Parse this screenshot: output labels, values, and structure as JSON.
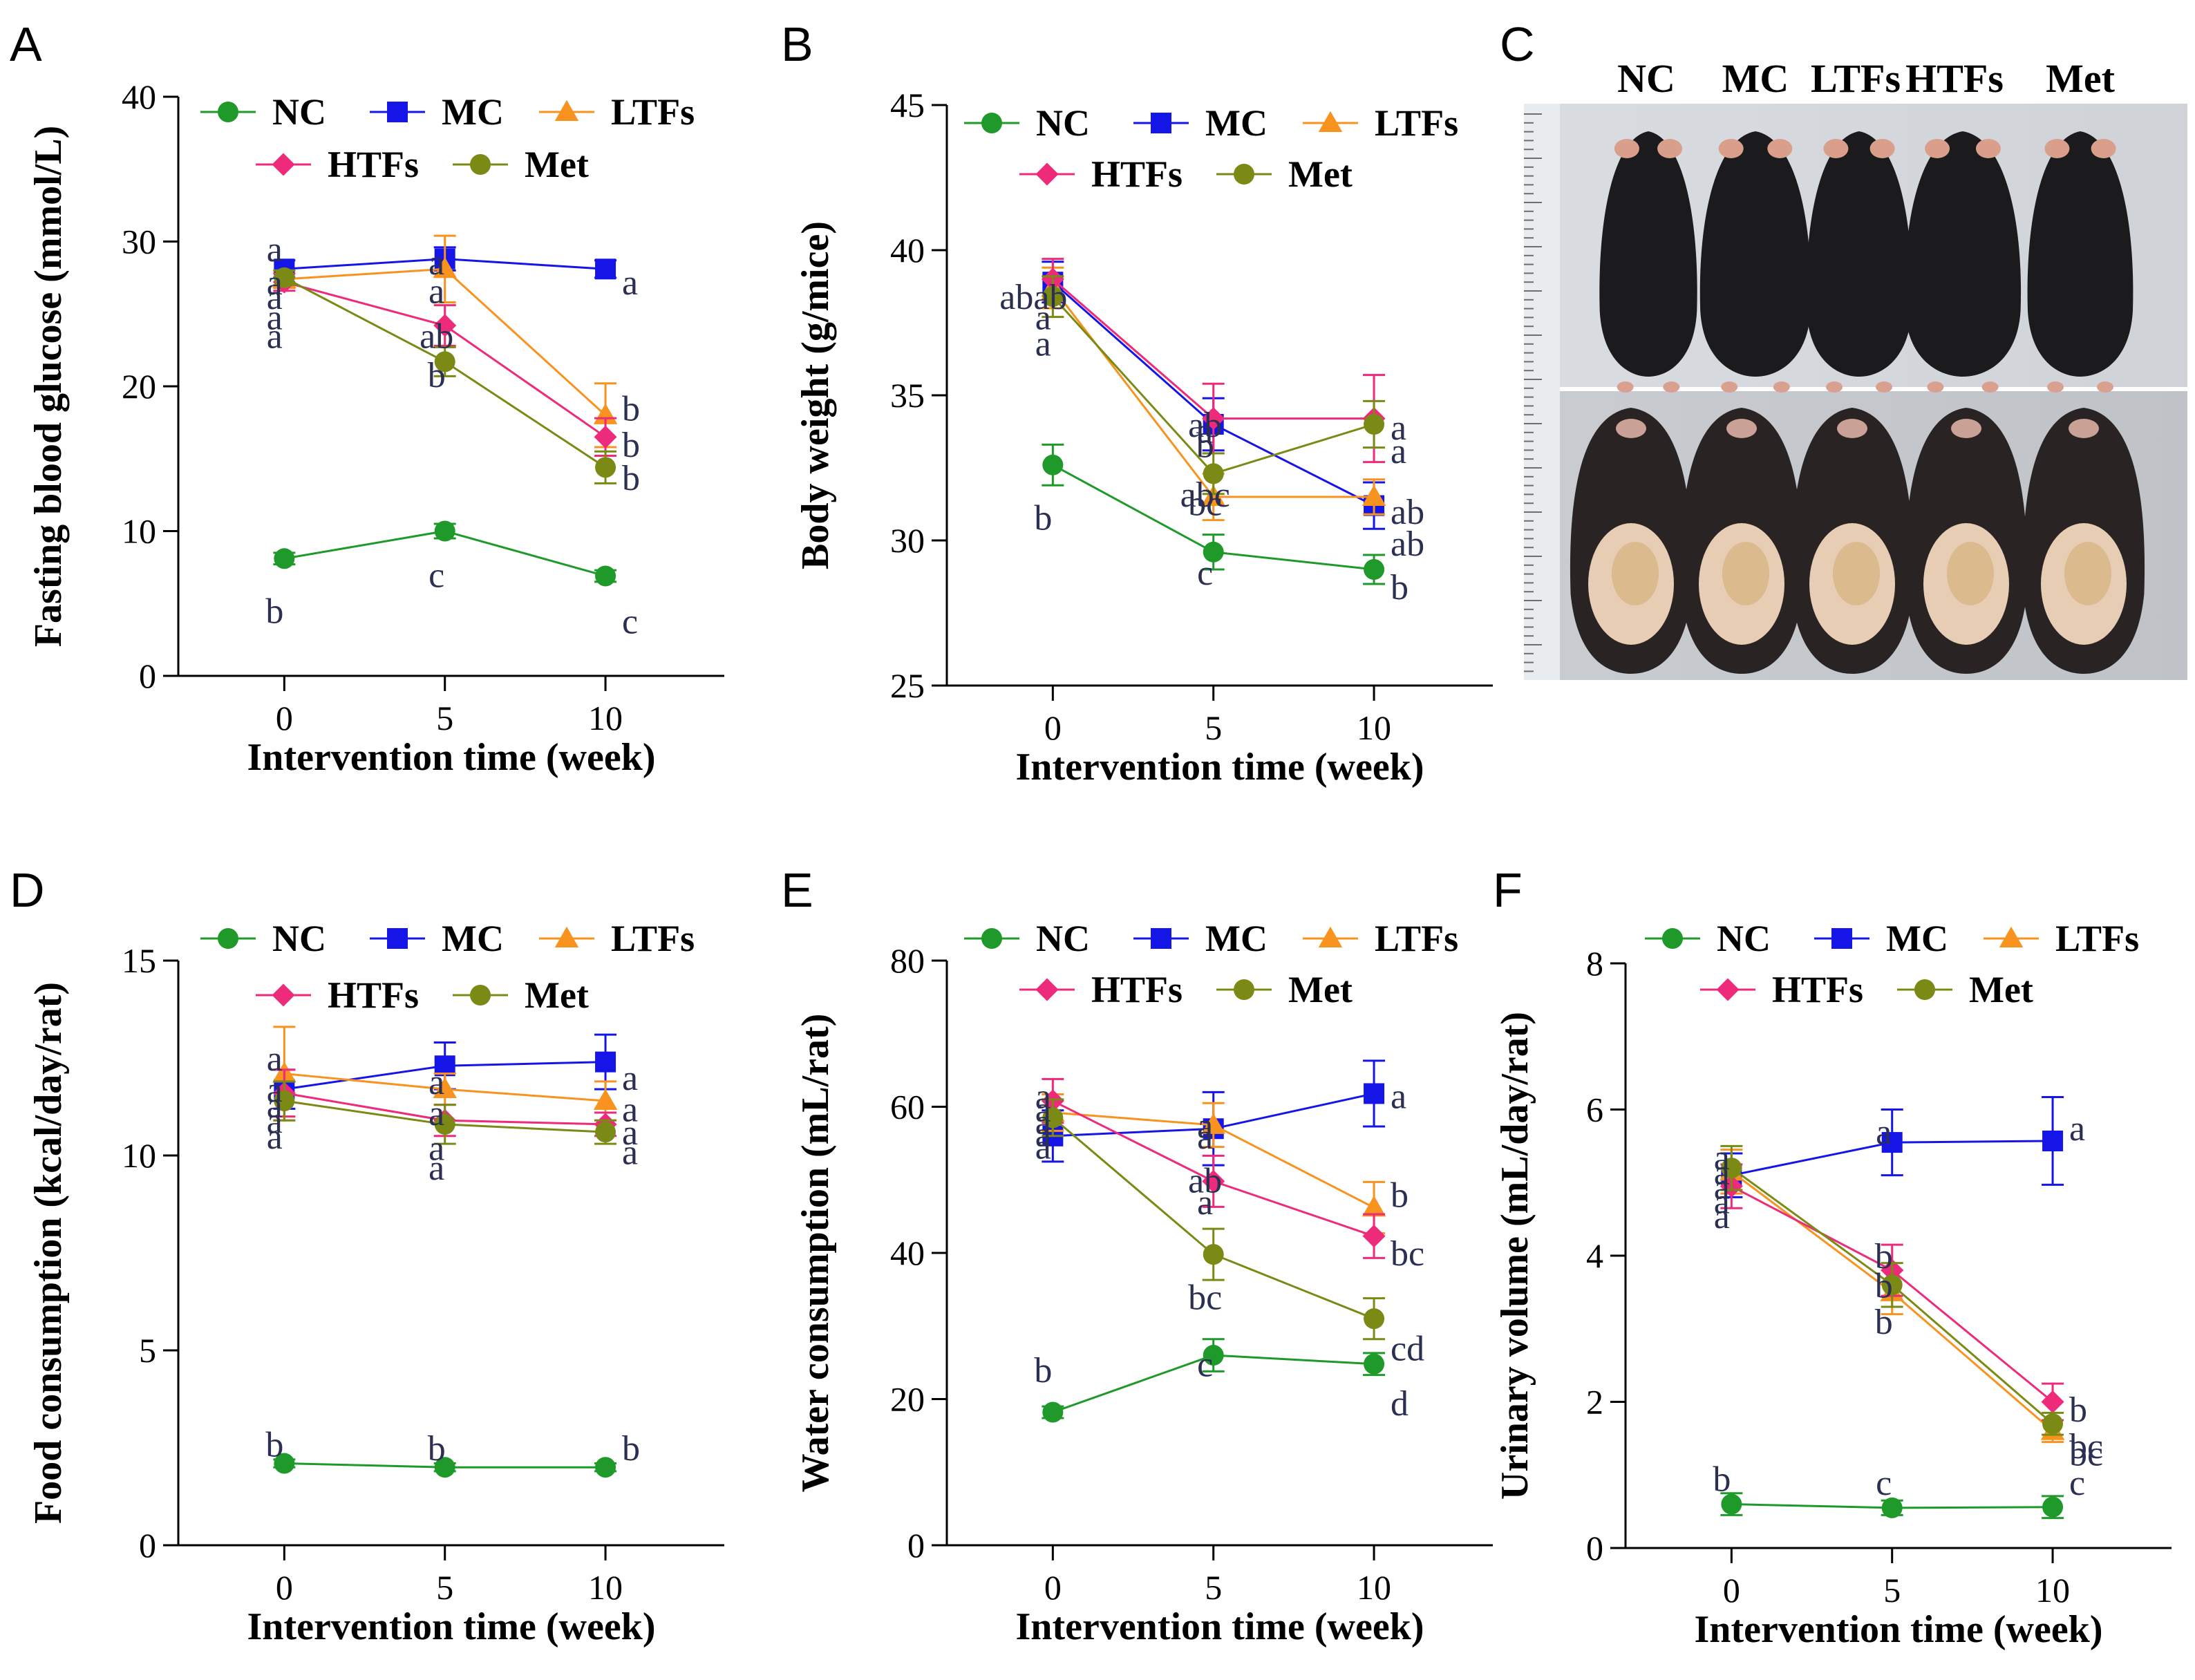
{
  "colors": {
    "NC": "#1f9a2a",
    "MC": "#1515e8",
    "LTFs": "#f7931e",
    "HTFs": "#ee2a7b",
    "Met": "#7a8a14"
  },
  "photo": {
    "label": "C",
    "groups": [
      "NC",
      "MC",
      "LTFs",
      "HTFs",
      "Met"
    ]
  },
  "chart_data": [
    {
      "id": "A",
      "type": "line",
      "label": "A",
      "xlabel": "Intervention time (week)",
      "ylabel": "Fasting blood glucose (mmol/L)",
      "x": [
        0,
        5,
        10
      ],
      "ylim": [
        0,
        40
      ],
      "yticks": [
        0,
        10,
        20,
        30,
        40
      ],
      "legend": [
        "NC",
        "MC",
        "LTFs",
        "HTFs",
        "Met"
      ],
      "series": [
        {
          "name": "NC",
          "values": [
            8.1,
            10.0,
            6.9
          ],
          "errors": [
            0.4,
            0.5,
            0.4
          ]
        },
        {
          "name": "MC",
          "values": [
            28.1,
            28.8,
            28.1
          ],
          "errors": [
            0.6,
            0.8,
            0.6
          ]
        },
        {
          "name": "LTFs",
          "values": [
            27.4,
            28.1,
            18.0
          ],
          "errors": [
            0.6,
            2.3,
            2.2
          ]
        },
        {
          "name": "HTFs",
          "values": [
            27.2,
            24.2,
            16.5
          ],
          "errors": [
            0.6,
            1.4,
            1.3
          ]
        },
        {
          "name": "Met",
          "values": [
            27.5,
            21.7,
            14.4
          ],
          "errors": [
            0.5,
            1.0,
            1.1
          ]
        }
      ],
      "annotations": [
        {
          "x": 0,
          "y": 29.5,
          "text": "a"
        },
        {
          "x": 0,
          "y": 27.2,
          "text": "a"
        },
        {
          "x": 0,
          "y": 26.2,
          "text": "a"
        },
        {
          "x": 0,
          "y": 24.8,
          "text": "a"
        },
        {
          "x": 0,
          "y": 23.5,
          "text": "a"
        },
        {
          "x": 5,
          "y": 28.6,
          "text": "a"
        },
        {
          "x": 5,
          "y": 26.6,
          "text": "a"
        },
        {
          "x": 5,
          "y": 23.5,
          "text": "ab"
        },
        {
          "x": 5,
          "y": 20.8,
          "text": "b"
        },
        {
          "x": 10,
          "y": 27.2,
          "text": "a"
        },
        {
          "x": 10,
          "y": 18.5,
          "text": "b"
        },
        {
          "x": 10,
          "y": 16.0,
          "text": "b"
        },
        {
          "x": 10,
          "y": 13.7,
          "text": "b"
        },
        {
          "x": 0,
          "y": 4.5,
          "text": "b"
        },
        {
          "x": 5,
          "y": 7.0,
          "text": "c"
        },
        {
          "x": 10,
          "y": 3.8,
          "text": "c"
        }
      ]
    },
    {
      "id": "B",
      "type": "line",
      "label": "B",
      "xlabel": "Intervention time (week)",
      "ylabel": "Body weight (g/mice)",
      "x": [
        0,
        5,
        10
      ],
      "ylim": [
        25,
        45
      ],
      "yticks": [
        25,
        30,
        35,
        40,
        45
      ],
      "legend": [
        "NC",
        "MC",
        "LTFs",
        "HTFs",
        "Met"
      ],
      "series": [
        {
          "name": "NC",
          "values": [
            32.6,
            29.6,
            29.0
          ],
          "errors": [
            0.7,
            0.6,
            0.5
          ]
        },
        {
          "name": "MC",
          "values": [
            38.9,
            34.0,
            31.2
          ],
          "errors": [
            0.7,
            0.9,
            0.8
          ]
        },
        {
          "name": "LTFs",
          "values": [
            38.7,
            31.5,
            31.5
          ],
          "errors": [
            0.7,
            0.8,
            0.6
          ]
        },
        {
          "name": "HTFs",
          "values": [
            39.0,
            34.2,
            34.2
          ],
          "errors": [
            0.7,
            1.2,
            1.5
          ]
        },
        {
          "name": "Met",
          "values": [
            38.4,
            32.3,
            34.0
          ],
          "errors": [
            0.7,
            0.7,
            0.8
          ]
        }
      ],
      "annotations": [
        {
          "x": 0,
          "y": 38.4,
          "text": "abab"
        },
        {
          "x": 0,
          "y": 37.7,
          "text": "a"
        },
        {
          "x": 0,
          "y": 36.8,
          "text": "a"
        },
        {
          "x": 5,
          "y": 34.0,
          "text": "ab"
        },
        {
          "x": 5,
          "y": 33.8,
          "text": "a"
        },
        {
          "x": 5,
          "y": 33.3,
          "text": "b"
        },
        {
          "x": 5,
          "y": 31.3,
          "text": "bc"
        },
        {
          "x": 5,
          "y": 31.6,
          "text": "abc"
        },
        {
          "x": 5,
          "y": 28.9,
          "text": "c"
        },
        {
          "x": 10,
          "y": 33.9,
          "text": "a"
        },
        {
          "x": 10,
          "y": 33.1,
          "text": "a"
        },
        {
          "x": 10,
          "y": 31.0,
          "text": "ab"
        },
        {
          "x": 10,
          "y": 29.9,
          "text": "ab"
        },
        {
          "x": 10,
          "y": 28.4,
          "text": "b"
        },
        {
          "x": 0,
          "y": 30.8,
          "text": "b"
        }
      ]
    },
    {
      "id": "D",
      "type": "line",
      "label": "D",
      "xlabel": "Intervention time (week)",
      "ylabel": "Food consumption (kcal/day/rat)",
      "x": [
        0,
        5,
        10
      ],
      "ylim": [
        0,
        15
      ],
      "yticks": [
        0,
        5,
        10,
        15
      ],
      "legend": [
        "NC",
        "MC",
        "LTFs",
        "HTFs",
        "Met"
      ],
      "series": [
        {
          "name": "NC",
          "values": [
            2.1,
            2.0,
            2.0
          ],
          "errors": [
            0.1,
            0.1,
            0.1
          ]
        },
        {
          "name": "MC",
          "values": [
            11.7,
            12.3,
            12.4
          ],
          "errors": [
            0.5,
            0.6,
            0.7
          ]
        },
        {
          "name": "LTFs",
          "values": [
            12.1,
            11.7,
            11.4
          ],
          "errors": [
            1.2,
            0.4,
            0.5
          ]
        },
        {
          "name": "HTFs",
          "values": [
            11.6,
            10.9,
            10.8
          ],
          "errors": [
            0.6,
            0.4,
            0.3
          ]
        },
        {
          "name": "Met",
          "values": [
            11.4,
            10.8,
            10.6
          ],
          "errors": [
            0.5,
            0.5,
            0.3
          ]
        }
      ],
      "annotations": [
        {
          "x": 0,
          "y": 12.5,
          "text": "a"
        },
        {
          "x": 0,
          "y": 11.7,
          "text": "a"
        },
        {
          "x": 0,
          "y": 11.3,
          "text": "a"
        },
        {
          "x": 0,
          "y": 10.9,
          "text": "a"
        },
        {
          "x": 0,
          "y": 10.5,
          "text": "a"
        },
        {
          "x": 5,
          "y": 11.9,
          "text": "a"
        },
        {
          "x": 5,
          "y": 11.1,
          "text": "a"
        },
        {
          "x": 5,
          "y": 10.2,
          "text": "a"
        },
        {
          "x": 5,
          "y": 9.7,
          "text": "a"
        },
        {
          "x": 10,
          "y": 12.0,
          "text": "a"
        },
        {
          "x": 10,
          "y": 11.2,
          "text": "a"
        },
        {
          "x": 10,
          "y": 10.6,
          "text": "a"
        },
        {
          "x": 10,
          "y": 10.1,
          "text": "a"
        },
        {
          "x": 0,
          "y": 2.6,
          "text": "b"
        },
        {
          "x": 5,
          "y": 2.5,
          "text": "b"
        },
        {
          "x": 10,
          "y": 2.5,
          "text": "b"
        }
      ]
    },
    {
      "id": "E",
      "type": "line",
      "label": "E",
      "xlabel": "Intervention time (week)",
      "ylabel": "Water consumption (mL/rat)",
      "x": [
        0,
        5,
        10
      ],
      "ylim": [
        0,
        80
      ],
      "yticks": [
        0,
        20,
        40,
        60,
        80
      ],
      "legend": [
        "NC",
        "MC",
        "LTFs",
        "HTFs",
        "Met"
      ],
      "series": [
        {
          "name": "NC",
          "values": [
            18.2,
            26.0,
            24.8
          ],
          "errors": [
            0.8,
            2.2,
            1.5
          ]
        },
        {
          "name": "MC",
          "values": [
            56.0,
            57.0,
            61.8
          ],
          "errors": [
            3.5,
            5.0,
            4.5
          ]
        },
        {
          "name": "LTFs",
          "values": [
            59.2,
            57.5,
            46.2
          ],
          "errors": [
            2.5,
            3.0,
            3.5
          ]
        },
        {
          "name": "HTFs",
          "values": [
            60.8,
            49.8,
            42.3
          ],
          "errors": [
            3.0,
            3.5,
            3.0
          ]
        },
        {
          "name": "Met",
          "values": [
            58.5,
            39.8,
            31.0
          ],
          "errors": [
            2.5,
            3.5,
            2.8
          ]
        }
      ],
      "annotations": [
        {
          "x": 0,
          "y": 61.5,
          "text": "a"
        },
        {
          "x": 0,
          "y": 59.7,
          "text": "a"
        },
        {
          "x": 0,
          "y": 58.0,
          "text": "a"
        },
        {
          "x": 0,
          "y": 56.3,
          "text": "a"
        },
        {
          "x": 0,
          "y": 54.6,
          "text": "a"
        },
        {
          "x": 5,
          "y": 57.5,
          "text": "a"
        },
        {
          "x": 5,
          "y": 56.0,
          "text": "a"
        },
        {
          "x": 5,
          "y": 50.0,
          "text": "ab"
        },
        {
          "x": 5,
          "y": 47.0,
          "text": "a"
        },
        {
          "x": 5,
          "y": 34.0,
          "text": "bc"
        },
        {
          "x": 10,
          "y": 61.5,
          "text": "a"
        },
        {
          "x": 10,
          "y": 48.0,
          "text": "b"
        },
        {
          "x": 10,
          "y": 40.0,
          "text": "bc"
        },
        {
          "x": 10,
          "y": 27.0,
          "text": "cd"
        },
        {
          "x": 10,
          "y": 19.5,
          "text": "d"
        },
        {
          "x": 0,
          "y": 24.0,
          "text": "b"
        },
        {
          "x": 5,
          "y": 24.8,
          "text": "c"
        }
      ]
    },
    {
      "id": "F",
      "type": "line",
      "label": "F",
      "xlabel": "Intervention time (week)",
      "ylabel": "Urinary volume (mL/day/rat)",
      "x": [
        0,
        5,
        10
      ],
      "ylim": [
        0,
        8
      ],
      "yticks": [
        0,
        2,
        4,
        6,
        8
      ],
      "legend": [
        "NC",
        "MC",
        "LTFs",
        "HTFs",
        "Met"
      ],
      "series": [
        {
          "name": "NC",
          "values": [
            0.6,
            0.55,
            0.56
          ],
          "errors": [
            0.15,
            0.1,
            0.15
          ]
        },
        {
          "name": "MC",
          "values": [
            5.1,
            5.55,
            5.57
          ],
          "errors": [
            0.3,
            0.45,
            0.6
          ]
        },
        {
          "name": "LTFs",
          "values": [
            5.15,
            3.5,
            1.6
          ],
          "errors": [
            0.3,
            0.3,
            0.15
          ]
        },
        {
          "name": "HTFs",
          "values": [
            4.95,
            3.8,
            2.0
          ],
          "errors": [
            0.3,
            0.35,
            0.25
          ]
        },
        {
          "name": "Met",
          "values": [
            5.2,
            3.6,
            1.7
          ],
          "errors": [
            0.3,
            0.3,
            0.15
          ]
        }
      ],
      "annotations": [
        {
          "x": 0,
          "y": 5.35,
          "text": "a"
        },
        {
          "x": 0,
          "y": 5.15,
          "text": "a"
        },
        {
          "x": 0,
          "y": 4.95,
          "text": "a"
        },
        {
          "x": 0,
          "y": 4.75,
          "text": "a"
        },
        {
          "x": 0,
          "y": 4.55,
          "text": "a"
        },
        {
          "x": 5,
          "y": 5.7,
          "text": "a"
        },
        {
          "x": 5,
          "y": 4.0,
          "text": "b"
        },
        {
          "x": 5,
          "y": 3.6,
          "text": "b"
        },
        {
          "x": 5,
          "y": 3.1,
          "text": "b"
        },
        {
          "x": 10,
          "y": 5.75,
          "text": "a"
        },
        {
          "x": 10,
          "y": 1.9,
          "text": "b"
        },
        {
          "x": 10,
          "y": 1.3,
          "text": "bc"
        },
        {
          "x": 10,
          "y": 1.4,
          "text": "bc"
        },
        {
          "x": 0,
          "y": 0.95,
          "text": "b"
        },
        {
          "x": 5,
          "y": 0.9,
          "text": "c"
        },
        {
          "x": 10,
          "y": 0.9,
          "text": "c"
        }
      ]
    }
  ]
}
